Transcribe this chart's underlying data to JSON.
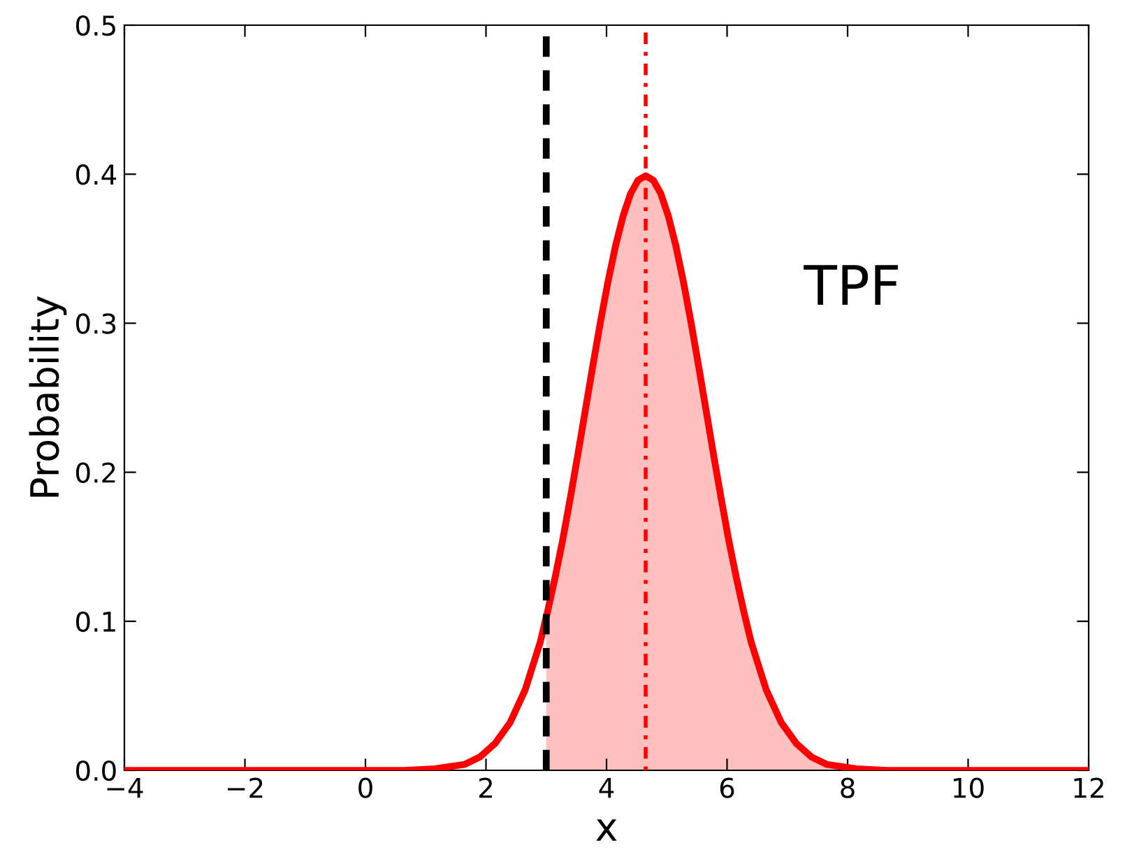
{
  "chart_data": {
    "type": "line",
    "xlabel": "x",
    "ylabel": "Probability",
    "xlim": [
      -4,
      12
    ],
    "ylim": [
      0,
      0.5
    ],
    "xticks": [
      {
        "value": -4,
        "label": "−4"
      },
      {
        "value": -2,
        "label": "−2"
      },
      0,
      2,
      4,
      6,
      8,
      10,
      12
    ],
    "yticks": [
      {
        "value": 0,
        "label": "0.0"
      },
      0.1,
      0.2,
      0.3,
      0.4,
      0.5
    ],
    "grid": false,
    "series": [
      {
        "type": "area",
        "color": "#ffc0c0",
        "x": [
          3,
          3.15,
          3.275,
          3.4,
          3.525,
          3.65,
          3.775,
          3.9,
          4.025,
          4.15,
          4.275,
          4.4,
          4.525,
          4.65,
          4.775,
          4.9,
          5.025,
          5.15,
          5.275,
          5.4,
          5.525,
          5.65,
          5.775,
          5.9,
          6.025,
          6.15,
          6.275,
          6.4,
          6.65,
          6.9,
          7.15,
          7.4,
          7.65,
          8.15,
          8.65,
          12
        ],
        "values": [
          0.102,
          0.13,
          0.155,
          0.183,
          0.212,
          0.242,
          0.272,
          0.301,
          0.328,
          0.352,
          0.372,
          0.387,
          0.396,
          0.399,
          0.396,
          0.387,
          0.372,
          0.352,
          0.328,
          0.301,
          0.272,
          0.242,
          0.212,
          0.183,
          0.155,
          0.13,
          0.107,
          0.086,
          0.054,
          0.032,
          0.018,
          0.009,
          0.004,
          0.001,
          0,
          0
        ]
      },
      {
        "color": "#ff0000",
        "x": [
          -4,
          0,
          0.65,
          1.15,
          1.65,
          1.9,
          2.15,
          2.4,
          2.65,
          2.9,
          3.025,
          3.15,
          3.275,
          3.4,
          3.525,
          3.65,
          3.775,
          3.9,
          4.025,
          4.15,
          4.275,
          4.4,
          4.525,
          4.65,
          4.775,
          4.9,
          5.025,
          5.15,
          5.275,
          5.4,
          5.525,
          5.65,
          5.775,
          5.9,
          6.025,
          6.15,
          6.275,
          6.4,
          6.65,
          6.9,
          7.15,
          7.4,
          7.65,
          8.15,
          8.65,
          12
        ],
        "values": [
          0,
          0,
          0,
          0.001,
          0.004,
          0.009,
          0.018,
          0.032,
          0.054,
          0.086,
          0.107,
          0.13,
          0.155,
          0.183,
          0.212,
          0.242,
          0.272,
          0.301,
          0.328,
          0.352,
          0.372,
          0.387,
          0.396,
          0.399,
          0.396,
          0.387,
          0.372,
          0.352,
          0.328,
          0.301,
          0.272,
          0.242,
          0.212,
          0.183,
          0.155,
          0.13,
          0.107,
          0.086,
          0.054,
          0.032,
          0.018,
          0.009,
          0.004,
          0.001,
          0,
          0
        ]
      }
    ],
    "ref_lines": [
      {
        "axis": "x",
        "value": 3,
        "color": "#000000",
        "line_style": "dashed"
      },
      {
        "axis": "x",
        "value": 4.65,
        "color": "#ff0000",
        "line_style": "dotted"
      }
    ],
    "annotations": [
      "TPF"
    ]
  }
}
